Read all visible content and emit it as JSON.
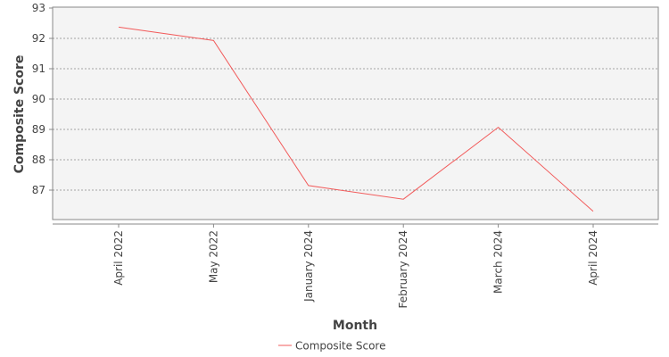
{
  "chart_data": {
    "type": "line",
    "title": "",
    "xlabel": "Month",
    "ylabel": "Composite Score",
    "categories": [
      "April 2022",
      "May 2022",
      "January 2024",
      "February 2024",
      "March 2024",
      "April 2024"
    ],
    "series": [
      {
        "name": "Composite Score",
        "values": [
          92.37,
          91.93,
          87.15,
          86.7,
          89.07,
          86.3
        ]
      }
    ],
    "ylim": [
      86,
      93
    ],
    "yticks": [
      87,
      88,
      89,
      90,
      91,
      92,
      93
    ],
    "grid": true,
    "legend": "bottom",
    "colors": {
      "line": "#f25b5b",
      "plot_bg": "#f4f4f4",
      "grid": "#555555",
      "axis": "#888888"
    }
  }
}
